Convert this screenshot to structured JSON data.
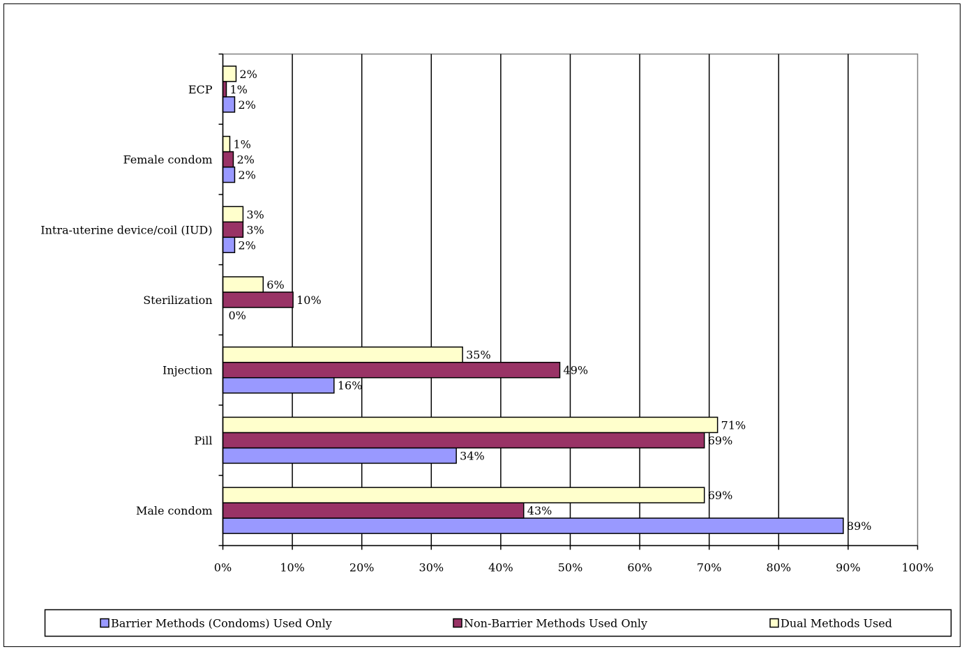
{
  "chart_data": {
    "type": "bar",
    "orientation": "horizontal",
    "title": "",
    "xlabel": "",
    "ylabel": "",
    "xlim": [
      0,
      100
    ],
    "x_ticks": [
      "0%",
      "10%",
      "20%",
      "30%",
      "40%",
      "50%",
      "60%",
      "70%",
      "80%",
      "90%",
      "100%"
    ],
    "grid": "vertical",
    "legend_position": "bottom",
    "categories": [
      "Male condom",
      "Pill",
      "Injection",
      "Sterilization",
      "Intra-uterine device/coil (IUD)",
      "Female condom",
      "ECP"
    ],
    "series": [
      {
        "name": "Barrier Methods (Condoms) Used Only",
        "color": "#9999ff",
        "values": [
          89.3,
          33.6,
          16.0,
          0,
          1.7,
          1.7,
          1.7
        ],
        "labels": [
          "89%",
          "34%",
          "16%",
          "0%",
          "2%",
          "2%",
          "2%"
        ]
      },
      {
        "name": "Non-Barrier Methods Used Only",
        "color": "#993366",
        "values": [
          43.3,
          69.3,
          48.5,
          10.1,
          2.9,
          1.5,
          0.5
        ],
        "labels": [
          "43%",
          "69%",
          "49%",
          "10%",
          "3%",
          "2%",
          "1%"
        ]
      },
      {
        "name": "Dual Methods Used",
        "color": "#ffffcc",
        "values": [
          69.3,
          71.2,
          34.5,
          5.8,
          2.9,
          1.0,
          1.9
        ],
        "labels": [
          "69%",
          "71%",
          "35%",
          "6%",
          "3%",
          "1%",
          "2%"
        ]
      }
    ]
  }
}
